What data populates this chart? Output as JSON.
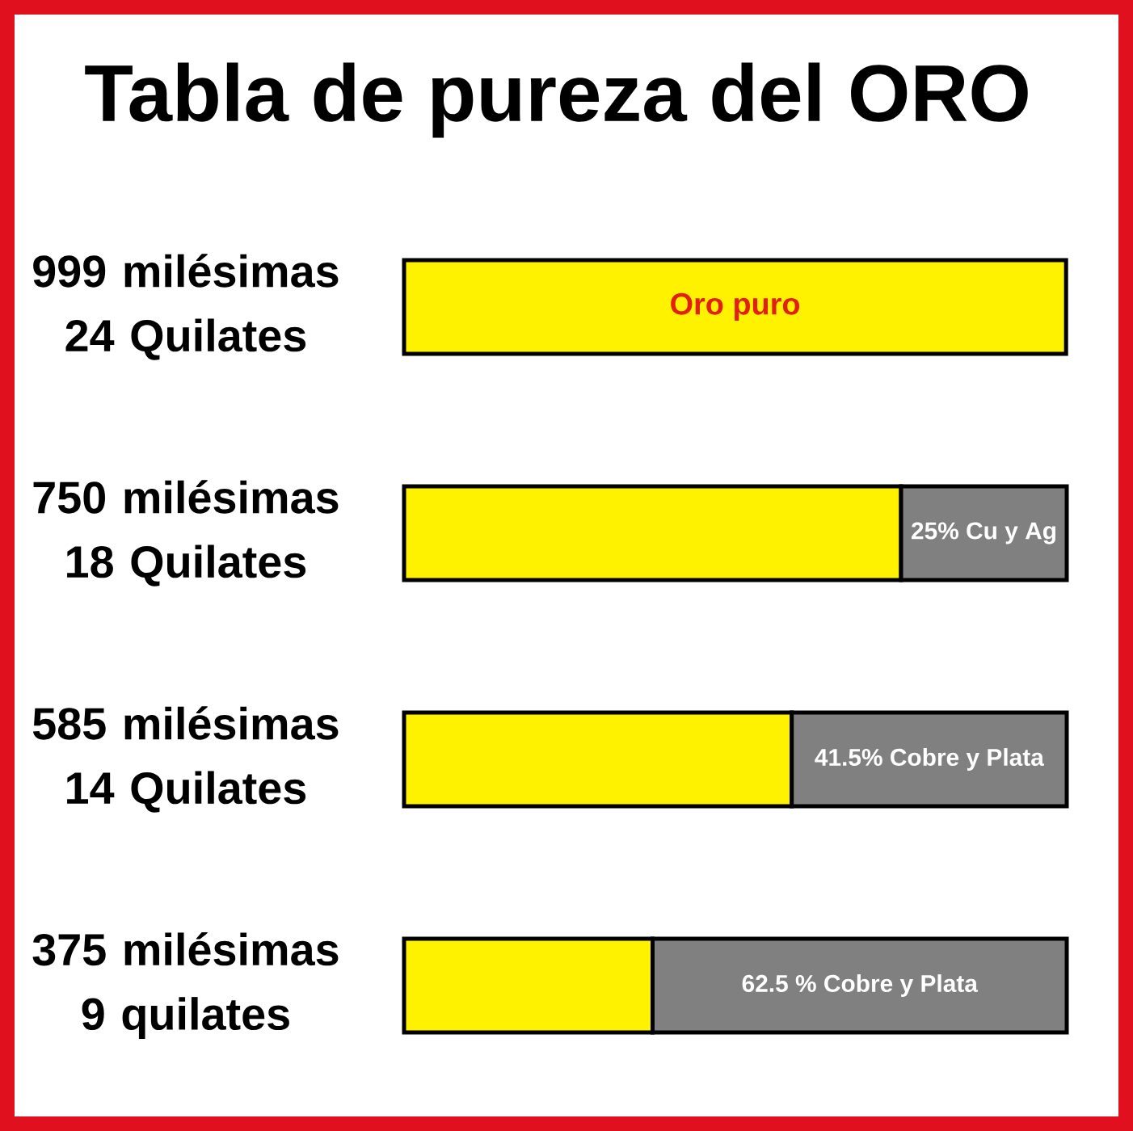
{
  "chart_data": {
    "type": "bar",
    "title": "Tabla de pureza del ORO",
    "orientation": "horizontal",
    "stacked": true,
    "tick_labels": "y",
    "xlim": [
      0,
      100
    ],
    "categories": [
      "999 milésimas 24 Quilates",
      "750 milésimas 18 Quilates",
      "585 milésimas 14 Quilates",
      "375 milésimas 9 quilates"
    ],
    "series": [
      {
        "color": "#fff200",
        "values": [
          99.9,
          75,
          58.5,
          37.5
        ],
        "value_labels": [
          "Oro puro",
          null,
          null,
          null
        ]
      },
      {
        "color": "#808080",
        "values": [
          null,
          25,
          41.5,
          62.5
        ],
        "value_labels": [
          null,
          "25% Cu y Ag",
          "41.5% Cobre y Plata",
          "62.5 % Cobre y Plata"
        ]
      }
    ]
  }
}
